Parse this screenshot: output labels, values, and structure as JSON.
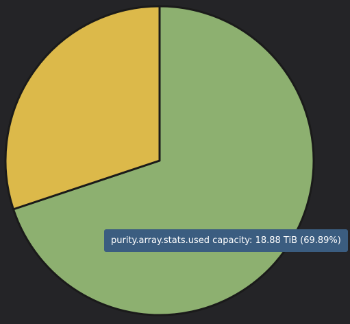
{
  "chart_data": {
    "type": "pie",
    "unit": "TiB",
    "slices": [
      {
        "name": "purity.array.stats.used capacity",
        "value": 18.88,
        "percent": 69.89,
        "color": "#8db070"
      },
      {
        "name": "",
        "value": 8.13,
        "percent": 30.11,
        "color": "#dcb94a"
      }
    ],
    "start_angle_deg": 0,
    "direction": "clockwise",
    "slice_border_color": "#1a1a1a"
  },
  "tooltip": {
    "text": "purity.array.stats.used capacity: 18.88 TiB (69.89%)"
  },
  "colors": {
    "background": "#242427",
    "tooltip_background": "#3b5d80"
  }
}
